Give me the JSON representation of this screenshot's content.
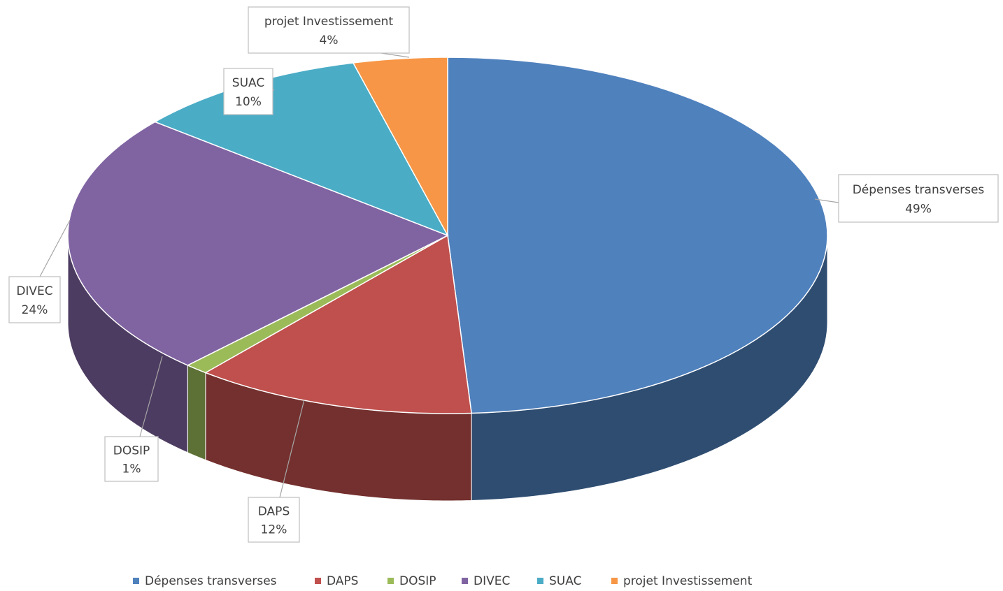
{
  "chart_data": {
    "type": "pie3d",
    "categories": [
      "Dépenses transverses",
      "DAPS",
      "DOSIP",
      "DIVEC",
      "SUAC",
      "projet Investissement"
    ],
    "values": [
      49,
      12,
      1,
      24,
      10,
      4
    ],
    "value_labels": [
      "49%",
      "12%",
      "1%",
      "24%",
      "10%",
      "4%"
    ],
    "colors": [
      "#4f81bd",
      "#c0504d",
      "#9bbb59",
      "#8064a2",
      "#4bacc6",
      "#f79646"
    ],
    "legend": "bottom"
  }
}
